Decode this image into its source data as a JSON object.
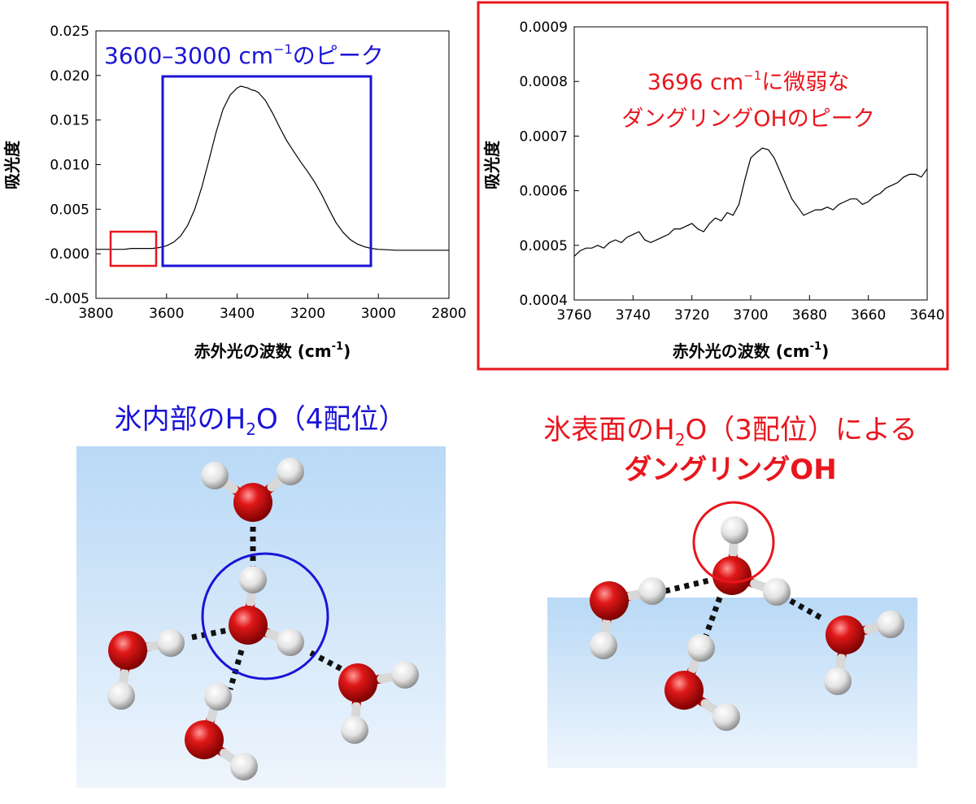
{
  "colors": {
    "blue": "#1a14d6",
    "red": "#e8161d",
    "line": "#000000"
  },
  "left_chart": {
    "ylabel": "吸光度",
    "xlabel_main": "赤外光の波数 (cm",
    "xlabel_sup": "-1",
    "xlabel_close": ")",
    "xticks": [
      "3800",
      "3600",
      "3400",
      "3200",
      "3000",
      "2800"
    ],
    "yticks": [
      "-0.005",
      "0.000",
      "0.005",
      "0.010",
      "0.015",
      "0.020",
      "0.025"
    ],
    "annotation_pre": "3600–3000 cm",
    "annotation_sup": "−1",
    "annotation_post": "のピーク"
  },
  "right_chart": {
    "ylabel": "吸光度",
    "xlabel_main": "赤外光の波数 (cm",
    "xlabel_sup": "-1",
    "xlabel_close": ")",
    "xticks": [
      "3760",
      "3740",
      "3720",
      "3700",
      "3680",
      "3660",
      "3640"
    ],
    "yticks": [
      "0.0004",
      "0.0005",
      "0.0006",
      "0.0007",
      "0.0008",
      "0.0009"
    ],
    "annotation_line1_pre": "3696 cm",
    "annotation_line1_sup": "−1",
    "annotation_line1_post": "に微弱な",
    "annotation_line2": "ダングリングOHのピーク"
  },
  "bottom_left": {
    "title_pre": "氷内部のH",
    "title_sub": "2",
    "title_post": "O（4配位）"
  },
  "bottom_right": {
    "title_line1_pre": "氷表面のH",
    "title_line1_sub": "2",
    "title_line1_post": "O（3配位）による",
    "title_line2": "ダングリングOH"
  },
  "chart_data": [
    {
      "type": "line",
      "xlabel": "赤外光の波数 (cm-1)",
      "ylabel": "吸光度",
      "xlim": [
        3800,
        2800
      ],
      "ylim": [
        -0.005,
        0.025
      ],
      "grid": false,
      "series": [
        {
          "x": [
            3800,
            3760,
            3720,
            3700,
            3680,
            3660,
            3640,
            3620,
            3600,
            3580,
            3560,
            3540,
            3520,
            3500,
            3480,
            3460,
            3440,
            3420,
            3400,
            3390,
            3380,
            3370,
            3360,
            3350,
            3340,
            3320,
            3300,
            3280,
            3260,
            3240,
            3220,
            3200,
            3180,
            3160,
            3140,
            3120,
            3100,
            3080,
            3060,
            3040,
            3020,
            3000,
            2950,
            2900,
            2850,
            2800
          ],
          "y": [
            0.0005,
            0.0005,
            0.0005,
            0.0006,
            0.0006,
            0.0006,
            0.0006,
            0.0007,
            0.0009,
            0.0013,
            0.002,
            0.0032,
            0.005,
            0.0075,
            0.0105,
            0.0136,
            0.0162,
            0.0178,
            0.0186,
            0.0188,
            0.0187,
            0.0186,
            0.0184,
            0.0183,
            0.0181,
            0.0172,
            0.0158,
            0.0142,
            0.0127,
            0.0115,
            0.0103,
            0.0092,
            0.008,
            0.0066,
            0.005,
            0.0035,
            0.0024,
            0.0016,
            0.0011,
            0.0008,
            0.0006,
            0.0005,
            0.0004,
            0.0004,
            0.0004,
            0.0004
          ]
        }
      ]
    },
    {
      "type": "line",
      "xlabel": "赤外光の波数 (cm-1)",
      "ylabel": "吸光度",
      "xlim": [
        3760,
        3640
      ],
      "ylim": [
        0.0004,
        0.0009
      ],
      "grid": false,
      "series": [
        {
          "x": [
            3760,
            3758,
            3756,
            3754,
            3752,
            3750,
            3748,
            3746,
            3744,
            3742,
            3740,
            3738,
            3736,
            3734,
            3732,
            3730,
            3728,
            3726,
            3724,
            3722,
            3720,
            3718,
            3716,
            3714,
            3712,
            3710,
            3708,
            3706,
            3704,
            3702,
            3700,
            3698,
            3696,
            3694,
            3692,
            3690,
            3688,
            3686,
            3684,
            3682,
            3680,
            3678,
            3676,
            3674,
            3672,
            3670,
            3668,
            3666,
            3664,
            3662,
            3660,
            3658,
            3656,
            3654,
            3652,
            3650,
            3648,
            3646,
            3644,
            3642,
            3640
          ],
          "y": [
            0.00048,
            0.00049,
            0.000495,
            0.000495,
            0.0005,
            0.000495,
            0.000505,
            0.00051,
            0.000505,
            0.000515,
            0.00052,
            0.000525,
            0.00051,
            0.000505,
            0.00051,
            0.000515,
            0.00052,
            0.00053,
            0.00053,
            0.000535,
            0.00054,
            0.00053,
            0.000525,
            0.00054,
            0.00055,
            0.000545,
            0.00056,
            0.000555,
            0.000575,
            0.00062,
            0.00066,
            0.00067,
            0.000678,
            0.000675,
            0.00066,
            0.000635,
            0.00061,
            0.000585,
            0.00057,
            0.000555,
            0.00056,
            0.000565,
            0.000565,
            0.00057,
            0.000565,
            0.000575,
            0.00058,
            0.000585,
            0.000585,
            0.000575,
            0.00058,
            0.00059,
            0.000595,
            0.000605,
            0.00061,
            0.000615,
            0.000625,
            0.00063,
            0.00063,
            0.000625,
            0.00064
          ]
        }
      ]
    }
  ]
}
